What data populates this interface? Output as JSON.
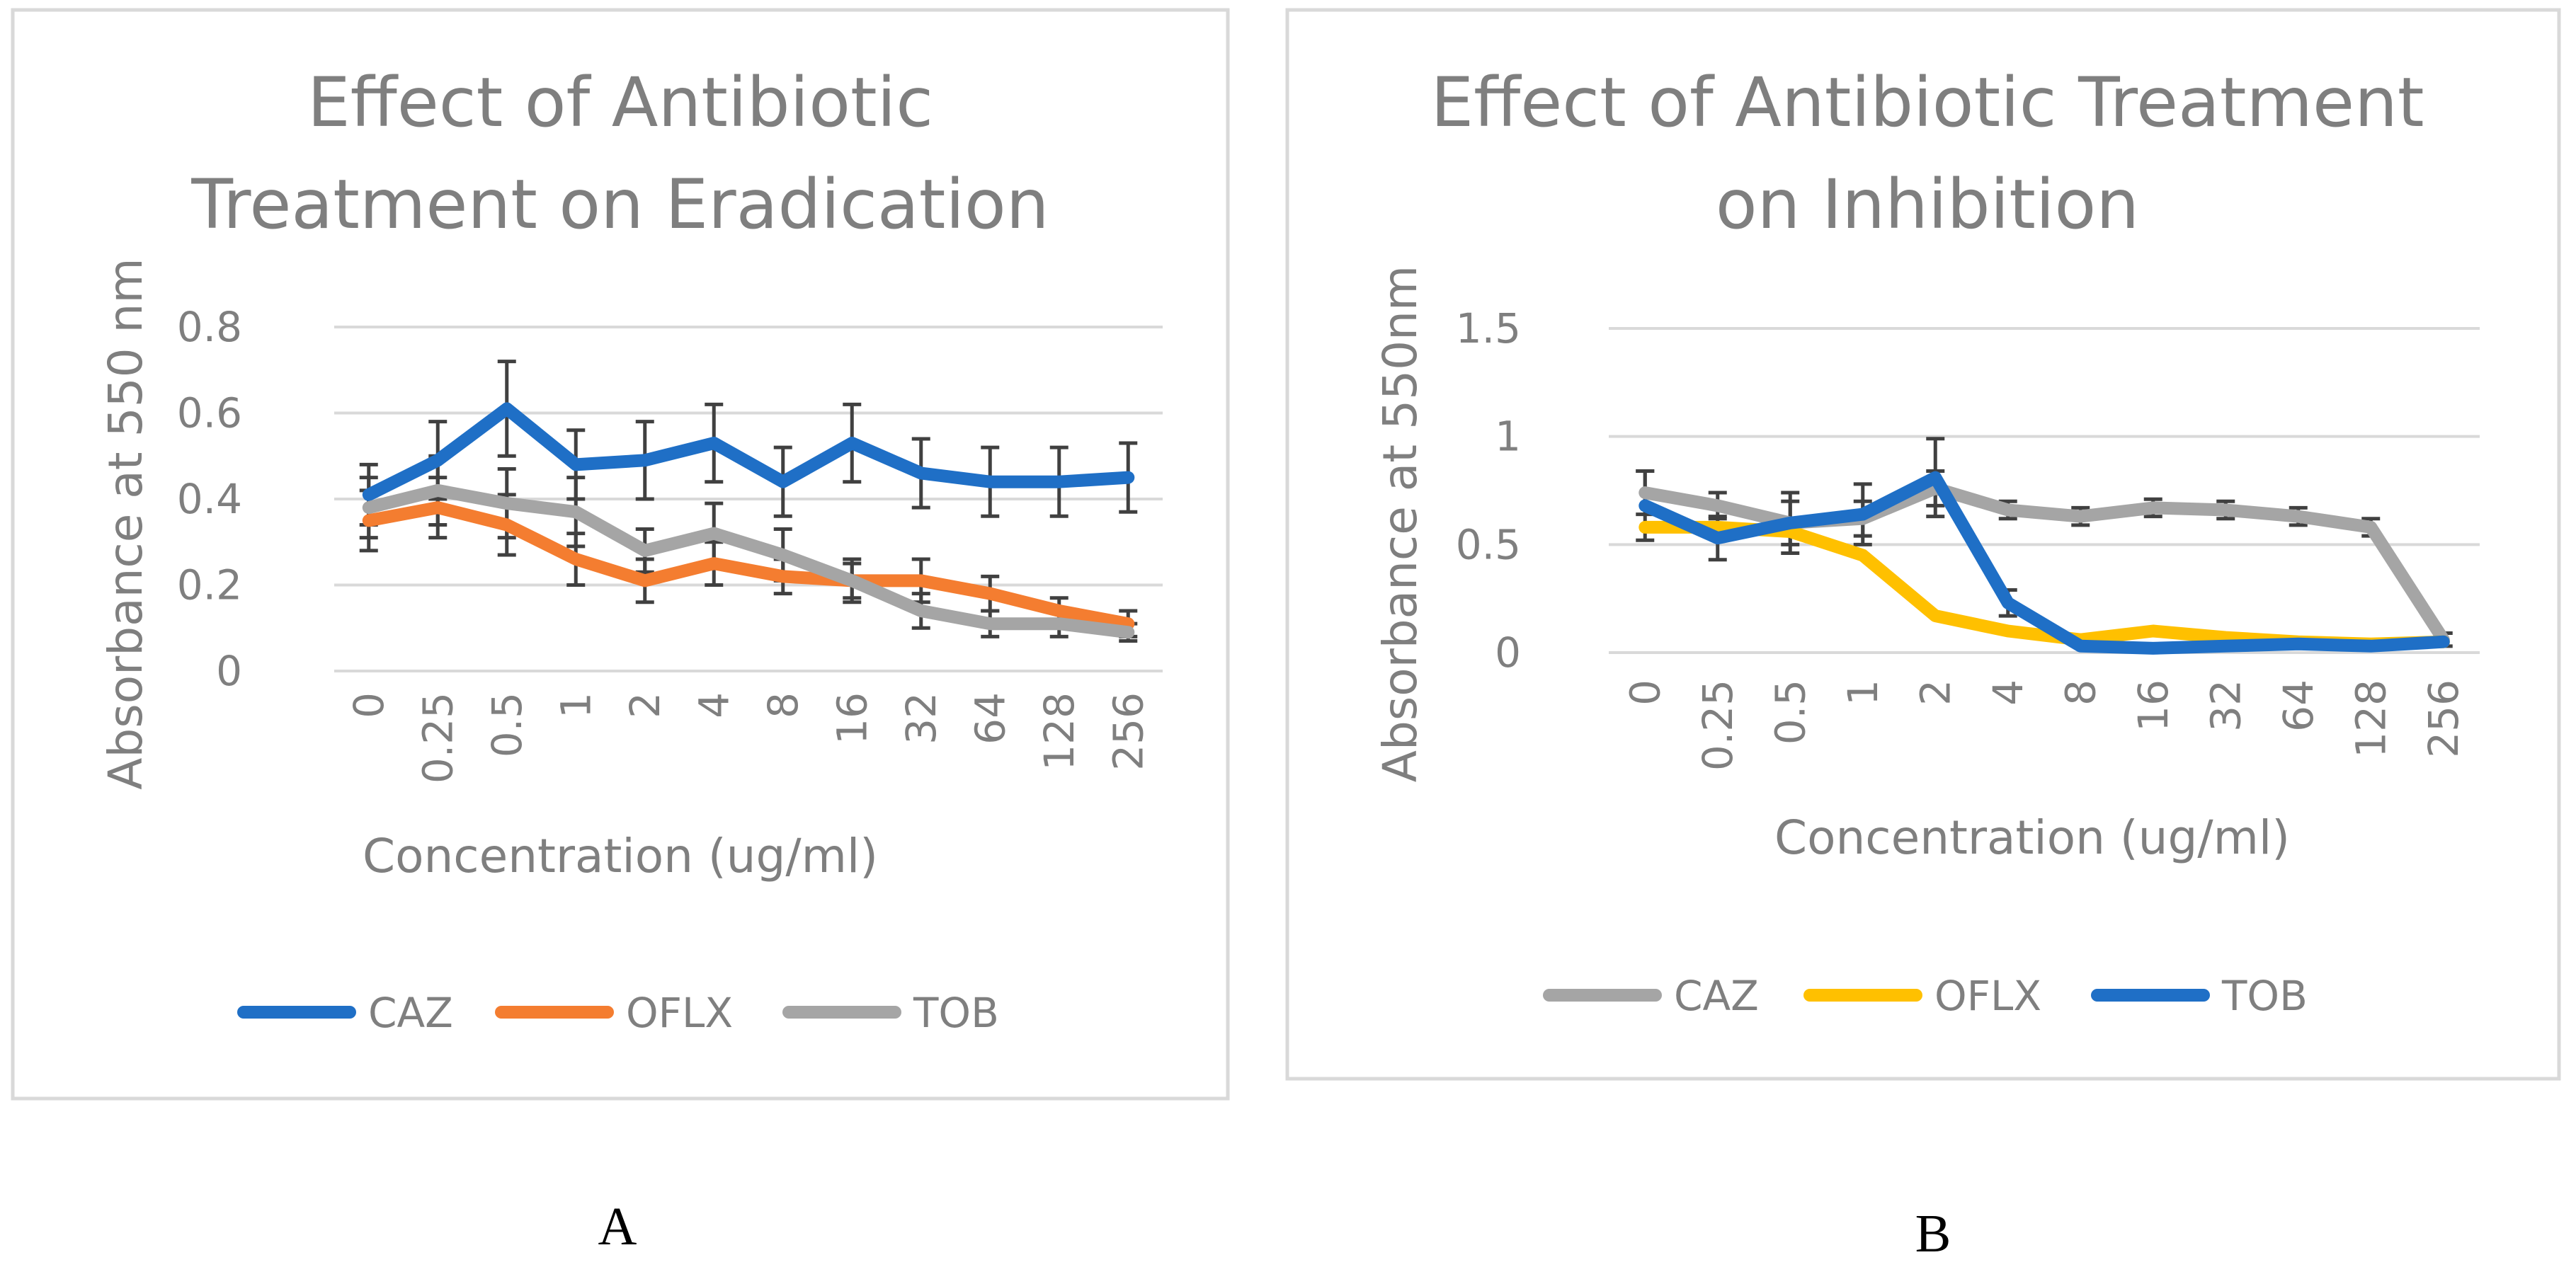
{
  "chart_data": [
    {
      "type": "line",
      "title_lines": [
        "Effect of Antibiotic",
        "Treatment on Eradication"
      ],
      "xlabel": "Concentration (ug/ml)",
      "ylabel": "Absorbance at 550 nm",
      "categories": [
        "0",
        "0.25",
        "0.5",
        "1",
        "2",
        "4",
        "8",
        "16",
        "32",
        "64",
        "128",
        "256"
      ],
      "ylim": [
        0,
        0.8
      ],
      "yticks": [
        "0",
        "0.2",
        "0.4",
        "0.6",
        "0.8"
      ],
      "ytick_values": [
        0,
        0.2,
        0.4,
        0.6,
        0.8
      ],
      "grid": true,
      "legend_position": "bottom",
      "series": [
        {
          "name": "CAZ",
          "color": "#1f6fc6",
          "values": [
            0.41,
            0.49,
            0.61,
            0.48,
            0.49,
            0.53,
            0.44,
            0.53,
            0.46,
            0.44,
            0.44,
            0.45
          ],
          "errors": [
            0.07,
            0.09,
            0.11,
            0.08,
            0.09,
            0.09,
            0.08,
            0.09,
            0.08,
            0.08,
            0.08,
            0.08
          ]
        },
        {
          "name": "OFLX",
          "color": "#f47d30",
          "values": [
            0.35,
            0.38,
            0.34,
            0.26,
            0.21,
            0.25,
            0.22,
            0.21,
            0.21,
            0.18,
            0.14,
            0.11
          ],
          "errors": [
            0.07,
            0.07,
            0.07,
            0.06,
            0.05,
            0.05,
            0.04,
            0.04,
            0.05,
            0.04,
            0.03,
            0.03
          ]
        },
        {
          "name": "TOB",
          "color": "#a5a5a5",
          "values": [
            0.38,
            0.42,
            0.39,
            0.37,
            0.28,
            0.32,
            0.27,
            0.21,
            0.14,
            0.11,
            0.11,
            0.09
          ],
          "errors": [
            0.07,
            0.08,
            0.08,
            0.08,
            0.05,
            0.07,
            0.06,
            0.05,
            0.04,
            0.03,
            0.03,
            0.02
          ]
        }
      ]
    },
    {
      "type": "line",
      "title_lines": [
        "Effect of Antibiotic Treatment",
        "on Inhibition"
      ],
      "xlabel": "Concentration (ug/ml)",
      "ylabel": "Absorbance at 550nm",
      "categories": [
        "0",
        "0.25",
        "0.5",
        "1",
        "2",
        "4",
        "8",
        "16",
        "32",
        "64",
        "128",
        "256"
      ],
      "ylim": [
        0,
        1.5
      ],
      "yticks": [
        "0",
        "0.5",
        "1",
        "1.5"
      ],
      "ytick_values": [
        0,
        0.5,
        1,
        1.5
      ],
      "grid": true,
      "legend_position": "bottom",
      "series": [
        {
          "name": "CAZ",
          "color": "#a5a5a5",
          "values": [
            0.74,
            0.68,
            0.6,
            0.62,
            0.76,
            0.66,
            0.63,
            0.67,
            0.66,
            0.63,
            0.58,
            0.06
          ],
          "errors": [
            0.1,
            0.06,
            0.14,
            0.08,
            0.08,
            0.04,
            0.04,
            0.04,
            0.04,
            0.04,
            0.04,
            0.03
          ]
        },
        {
          "name": "OFLX",
          "color": "#ffc000",
          "values": [
            0.58,
            0.58,
            0.56,
            0.45,
            0.17,
            0.1,
            0.06,
            0.1,
            0.07,
            0.05,
            0.04,
            0.05
          ],
          "errors": [
            0.0,
            0.0,
            0.0,
            0.0,
            0.0,
            0.0,
            0.0,
            0.0,
            0.0,
            0.0,
            0.0,
            0.0
          ]
        },
        {
          "name": "TOB",
          "color": "#1f6fc6",
          "values": [
            0.68,
            0.53,
            0.6,
            0.64,
            0.81,
            0.23,
            0.03,
            0.02,
            0.03,
            0.04,
            0.03,
            0.05
          ],
          "errors": [
            0.16,
            0.1,
            0.1,
            0.14,
            0.18,
            0.06,
            0.0,
            0.0,
            0.0,
            0.0,
            0.0,
            0.0
          ]
        }
      ]
    }
  ],
  "panel_labels": [
    "A",
    "B"
  ]
}
